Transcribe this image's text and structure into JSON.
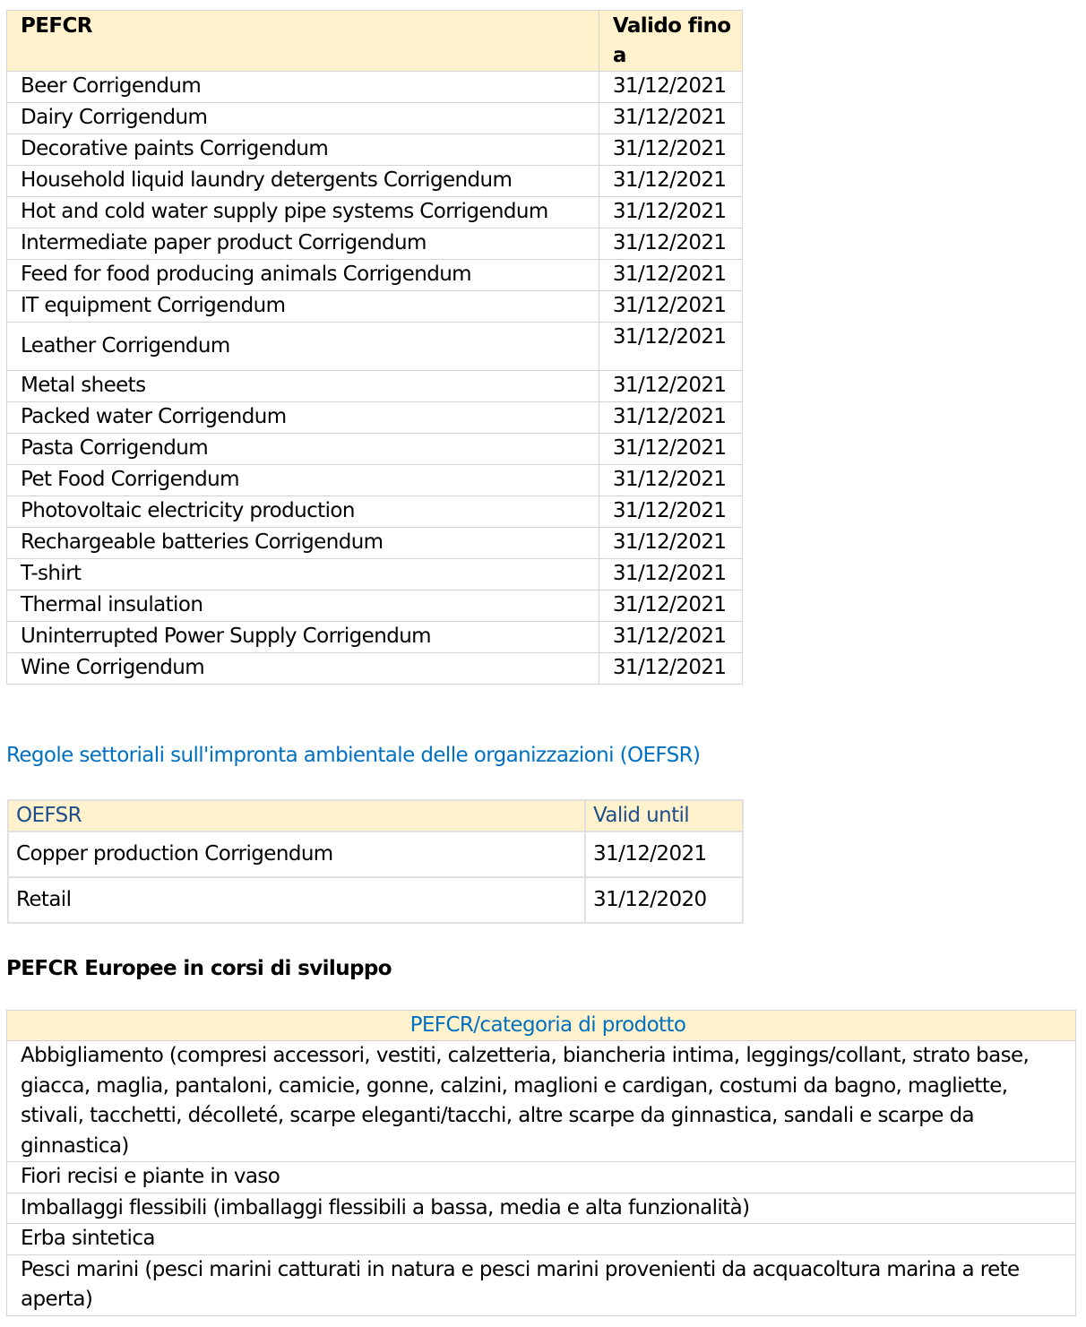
{
  "pefcr_table": {
    "headers": [
      "PEFCR",
      "Valido fino a"
    ],
    "rows": [
      [
        "Beer Corrigendum",
        "31/12/2021"
      ],
      [
        "Dairy Corrigendum",
        "31/12/2021"
      ],
      [
        "Decorative paints Corrigendum",
        "31/12/2021"
      ],
      [
        "Household liquid laundry detergents Corrigendum",
        "31/12/2021"
      ],
      [
        "Hot and cold water supply pipe systems Corrigendum",
        "31/12/2021"
      ],
      [
        "Intermediate paper product Corrigendum",
        "31/12/2021"
      ],
      [
        "Feed for food producing animals Corrigendum",
        "31/12/2021"
      ],
      [
        "IT equipment Corrigendum",
        "31/12/2021"
      ],
      [
        "Leather Corrigendum",
        "31/12/2021"
      ],
      [
        "Metal sheets",
        "31/12/2021"
      ],
      [
        "Packed water Corrigendum",
        "31/12/2021"
      ],
      [
        "Pasta Corrigendum",
        "31/12/2021"
      ],
      [
        "Pet Food Corrigendum",
        "31/12/2021"
      ],
      [
        "Photovoltaic electricity production",
        "31/12/2021"
      ],
      [
        "Rechargeable batteries Corrigendum",
        "31/12/2021"
      ],
      [
        "T-shirt",
        "31/12/2021"
      ],
      [
        "Thermal insulation",
        "31/12/2021"
      ],
      [
        "Uninterrupted Power Supply Corrigendum",
        "31/12/2021"
      ],
      [
        "Wine Corrigendum",
        "31/12/2021"
      ]
    ]
  },
  "oefsr_heading": "Regole settoriali sull'impronta ambientale delle organizzazioni (OEFSR)",
  "oefsr_table": {
    "headers": [
      "OEFSR",
      "Valid until"
    ],
    "rows": [
      [
        "Copper production Corrigendum",
        "31/12/2021"
      ],
      [
        "Retail",
        "31/12/2020"
      ]
    ]
  },
  "dev_heading": "PEFCR Europee in corsi di sviluppo",
  "dev_table": {
    "header": "PEFCR/categoria di prodotto",
    "rows": [
      "Abbigliamento (compresi accessori, vestiti, calzetteria, biancheria intima, leggings/collant, strato base, giacca, maglia, pantaloni, camicie, gonne, calzini, maglioni e cardigan, costumi da bagno, magliette, stivali, tacchetti, décolleté, scarpe eleganti/tacchi, altre scarpe da ginnastica, sandali e scarpe da ginnastica)",
      "Fiori recisi e piante in vaso",
      "Imballaggi flessibili (imballaggi flessibili a bassa, media e alta funzionalità)",
      "Erba sintetica",
      "Pesci marini (pesci marini catturati in natura e pesci marini provenienti da acquacoltura marina a rete aperta)"
    ]
  },
  "colors": {
    "header_bg": "#fff2cc",
    "link_blue": "#0070c0",
    "header_blue": "#1f4e8c",
    "border": "#d4d4d4"
  }
}
